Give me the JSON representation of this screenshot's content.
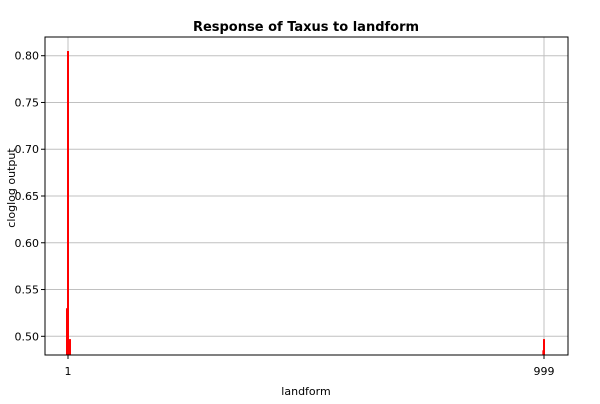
{
  "chart_data": {
    "type": "bar",
    "title": "Response of Taxus to landform",
    "xlabel": "landform",
    "ylabel": "cloglog output",
    "ylim": [
      0.48,
      0.82
    ],
    "yticks": [
      0.5,
      0.55,
      0.6,
      0.65,
      0.7,
      0.75,
      0.8
    ],
    "ytick_labels": [
      "0.50",
      "0.55",
      "0.60",
      "0.65",
      "0.70",
      "0.75",
      "0.80"
    ],
    "categories": [
      "1",
      "999"
    ],
    "values": [
      0.805,
      0.497
    ],
    "bar_color": "#ff0000",
    "grid": true
  }
}
